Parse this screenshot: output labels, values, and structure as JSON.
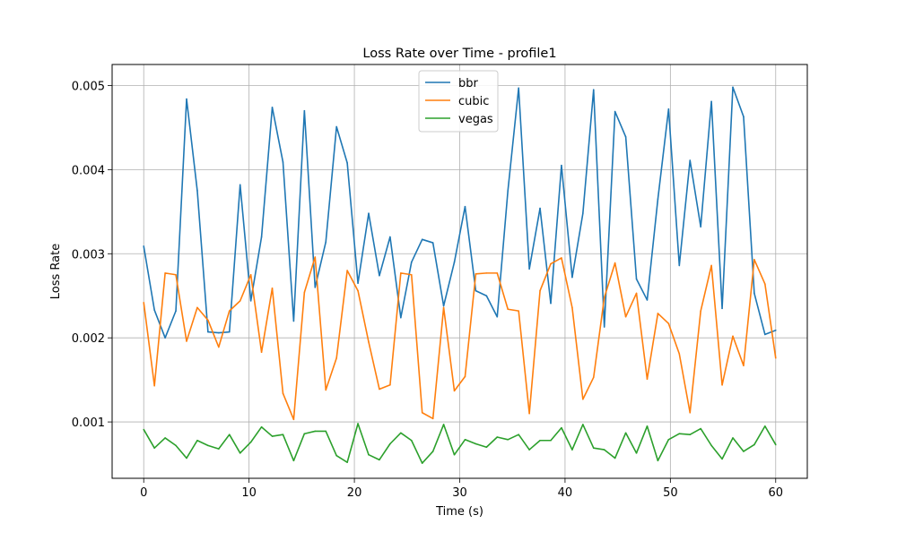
{
  "chart_data": {
    "type": "line",
    "title": "Loss Rate over Time - profile1",
    "xlabel": "Time (s)",
    "ylabel": "Loss Rate",
    "xlim": [
      -3,
      63
    ],
    "ylim": [
      0.00033,
      0.00525
    ],
    "xticks": [
      0,
      10,
      20,
      30,
      40,
      50,
      60
    ],
    "xtick_labels": [
      "0",
      "10",
      "20",
      "30",
      "40",
      "50",
      "60"
    ],
    "yticks": [
      0.001,
      0.002,
      0.003,
      0.004,
      0.005
    ],
    "ytick_labels": [
      "0.001",
      "0.002",
      "0.003",
      "0.004",
      "0.005"
    ],
    "grid": true,
    "legend_position": "top-center",
    "x": [
      0,
      1.017,
      2.034,
      3.051,
      4.068,
      5.085,
      6.102,
      7.119,
      8.136,
      9.153,
      10.169,
      11.186,
      12.203,
      13.22,
      14.237,
      15.254,
      16.271,
      17.288,
      18.305,
      19.322,
      20.339,
      21.356,
      22.373,
      23.39,
      24.407,
      25.424,
      26.441,
      27.458,
      28.475,
      29.492,
      30.508,
      31.525,
      32.542,
      33.559,
      34.576,
      35.593,
      36.61,
      37.627,
      38.644,
      39.661,
      40.678,
      41.695,
      42.712,
      43.729,
      44.746,
      45.763,
      46.78,
      47.797,
      48.814,
      49.831,
      50.847,
      51.864,
      52.881,
      53.898,
      54.915,
      55.932,
      56.949,
      57.966,
      58.983,
      60
    ],
    "series": [
      {
        "name": "bbr",
        "color": "#1f77b4",
        "values": [
          0.00309,
          0.00233,
          0.002,
          0.00232,
          0.00484,
          0.00375,
          0.00207,
          0.00206,
          0.00207,
          0.00382,
          0.00244,
          0.0032,
          0.00474,
          0.00409,
          0.0022,
          0.0047,
          0.0026,
          0.00314,
          0.00451,
          0.00408,
          0.00265,
          0.00348,
          0.00274,
          0.0032,
          0.00224,
          0.0029,
          0.00317,
          0.00313,
          0.00238,
          0.0029,
          0.00356,
          0.00256,
          0.0025,
          0.00225,
          0.00375,
          0.00497,
          0.00282,
          0.00354,
          0.00241,
          0.00405,
          0.00272,
          0.00348,
          0.00495,
          0.00213,
          0.00469,
          0.00439,
          0.0027,
          0.00245,
          0.00365,
          0.00472,
          0.00286,
          0.00411,
          0.00332,
          0.00481,
          0.00235,
          0.00498,
          0.00463,
          0.00253,
          0.00204,
          0.00209
        ]
      },
      {
        "name": "cubic",
        "color": "#ff7f0e",
        "values": [
          0.00242,
          0.00143,
          0.00277,
          0.00275,
          0.00196,
          0.00236,
          0.00221,
          0.00189,
          0.00232,
          0.00244,
          0.00275,
          0.00183,
          0.00259,
          0.00134,
          0.00103,
          0.00254,
          0.00296,
          0.00138,
          0.00176,
          0.0028,
          0.00256,
          0.00195,
          0.00139,
          0.00144,
          0.00277,
          0.00275,
          0.00111,
          0.00104,
          0.00236,
          0.00137,
          0.00154,
          0.00276,
          0.00277,
          0.00277,
          0.00234,
          0.00232,
          0.0011,
          0.00256,
          0.00288,
          0.00295,
          0.00236,
          0.00127,
          0.00153,
          0.00248,
          0.00289,
          0.00225,
          0.00253,
          0.00151,
          0.00229,
          0.00217,
          0.00181,
          0.00111,
          0.00232,
          0.00286,
          0.00144,
          0.00202,
          0.00167,
          0.00293,
          0.00264,
          0.00176
        ]
      },
      {
        "name": "vegas",
        "color": "#2ca02c",
        "values": [
          0.00091,
          0.00069,
          0.00081,
          0.00072,
          0.00057,
          0.00078,
          0.00072,
          0.00068,
          0.00085,
          0.00063,
          0.00076,
          0.00094,
          0.00083,
          0.00085,
          0.00054,
          0.00086,
          0.00089,
          0.00089,
          0.0006,
          0.00052,
          0.00098,
          0.00061,
          0.00055,
          0.00074,
          0.00087,
          0.00078,
          0.00051,
          0.00065,
          0.00097,
          0.00061,
          0.00079,
          0.00074,
          0.0007,
          0.00082,
          0.00079,
          0.00085,
          0.00067,
          0.00078,
          0.00078,
          0.00093,
          0.00067,
          0.00097,
          0.00069,
          0.00067,
          0.00057,
          0.00087,
          0.00063,
          0.00095,
          0.00054,
          0.00079,
          0.00086,
          0.00085,
          0.00092,
          0.00072,
          0.00056,
          0.00081,
          0.00065,
          0.00073,
          0.00095,
          0.00073
        ]
      }
    ]
  }
}
